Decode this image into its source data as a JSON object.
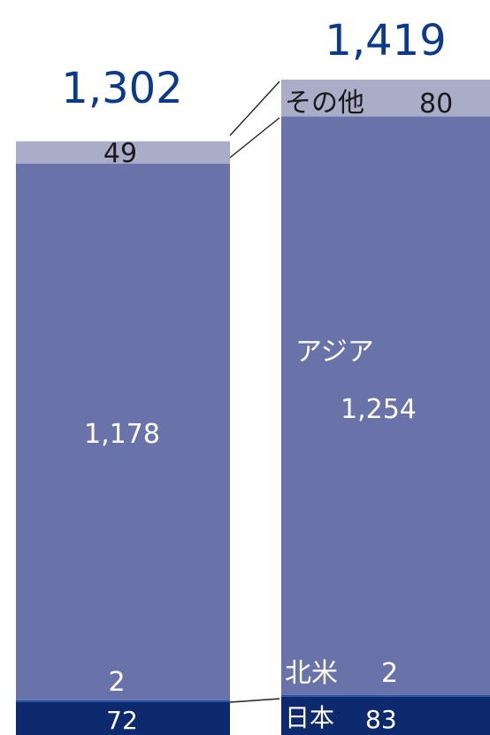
{
  "chart_data": {
    "type": "bar",
    "stacked": true,
    "categories": [
      "",
      ""
    ],
    "series": [
      {
        "name": "日本",
        "values": [
          72,
          83
        ],
        "color": "#0d2a6e"
      },
      {
        "name": "北米",
        "values": [
          2,
          2
        ],
        "color": "#1e4fa8"
      },
      {
        "name": "アジア",
        "values": [
          1178,
          1254
        ],
        "color": "#6a73a9"
      },
      {
        "name": "その他",
        "values": [
          49,
          80
        ],
        "color": "#a9adc8"
      }
    ],
    "totals": [
      "1,302",
      "1,419"
    ],
    "value_labels": [
      {
        "japan": "72",
        "na": "2",
        "asia": "1,178",
        "other": "49"
      },
      {
        "japan": "83",
        "na": "2",
        "asia": "1,254",
        "other": "80"
      }
    ],
    "segment_names": {
      "japan": "日本",
      "na": "北米",
      "asia": "アジア",
      "other": "その他"
    },
    "grid": false,
    "legend": "none"
  }
}
